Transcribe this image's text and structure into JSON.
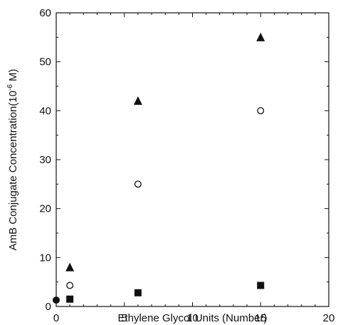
{
  "chart_data": {
    "type": "scatter",
    "xlabel": "Ethylene Glycol Units (Number)",
    "ylabel": {
      "prefix": "AmB Conjugate Concentration(10",
      "superscript": "-6",
      "suffix": " M)"
    },
    "xlim": [
      0,
      20
    ],
    "ylim": [
      0,
      60
    ],
    "xticks": [
      "0",
      "5",
      "10",
      "15",
      "20"
    ],
    "yticks": [
      "0",
      "10",
      "20",
      "30",
      "40",
      "50",
      "60"
    ],
    "grid": false,
    "series": [
      {
        "marker": "triangle-filled",
        "color": "#111111",
        "x": [
          1,
          6,
          15
        ],
        "y": [
          8,
          42,
          55
        ]
      },
      {
        "marker": "circle-open",
        "color": "#111111",
        "x": [
          1,
          6,
          15
        ],
        "y": [
          4.3,
          25,
          40
        ]
      },
      {
        "marker": "square-filled",
        "color": "#111111",
        "x": [
          1,
          6,
          15
        ],
        "y": [
          1.5,
          2.8,
          4.3
        ]
      },
      {
        "marker": "circle-filled",
        "color": "#111111",
        "x": [
          0
        ],
        "y": [
          1.3
        ]
      }
    ]
  }
}
